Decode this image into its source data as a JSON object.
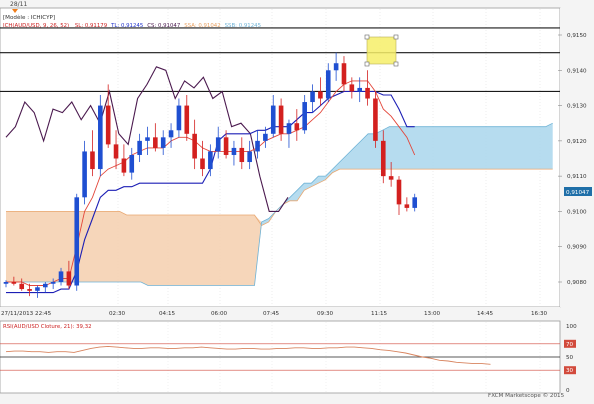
{
  "chart_window": {
    "top_date_label": "28/11",
    "legend_line1": "[Modèle : ICHICYP]",
    "legend_prefix": "ICH(AUD/USD, 9, 26, 52)",
    "legend_values": [
      {
        "text": "SL: 0,91179",
        "color": "#cc2222"
      },
      {
        "text": "TL: 0,91245",
        "color": "#2233cc"
      },
      {
        "text": "CS: 0,91047",
        "color": "#4b1a4f"
      },
      {
        "text": "SSA: 0,91042",
        "color": "#e8a060"
      },
      {
        "text": "SSB: 0,91245",
        "color": "#6fb3d6"
      }
    ],
    "price_axis": [
      "0,9150",
      "0,9140",
      "0,9130",
      "0,9120",
      "0,9110",
      "0,9100",
      "0,9090",
      "0,9080"
    ],
    "current_price": "0,91047",
    "time_axis": [
      "27/11/2013 22:45",
      "02:30",
      "04:15",
      "06:00",
      "07:45",
      "09:30",
      "11:15",
      "13:00",
      "14:45",
      "16:30"
    ],
    "footer": "FXCM Marketscope © 2015"
  },
  "rsi_window": {
    "legend": "RSI(AUD/USD Cloture, 21): 39,32",
    "axis": [
      "100",
      "70",
      "50",
      "30",
      "0"
    ]
  },
  "colors": {
    "bull": "#1f4fd1",
    "bear": "#d3201f",
    "tenkan": "#e3463a",
    "kijun": "#1c1fb5",
    "chikou": "#4b1a4f",
    "kumo_bull": "#a9d6ec",
    "kumo_bear": "#f5cfae"
  },
  "chart_data": {
    "type": "candlestick",
    "symbol": "AUD/USD",
    "ylim": [
      0.9073,
      0.9156
    ],
    "yticks": [
      0.915,
      0.914,
      0.913,
      0.912,
      0.911,
      0.91,
      0.909,
      0.908
    ],
    "horizontal_lines": [
      0.9152,
      0.9145,
      0.9134
    ],
    "candles": [
      {
        "o": 0.90795,
        "h": 0.90805,
        "l": 0.90785,
        "c": 0.908
      },
      {
        "o": 0.908,
        "h": 0.90815,
        "l": 0.9079,
        "c": 0.90795
      },
      {
        "o": 0.90795,
        "h": 0.9081,
        "l": 0.90775,
        "c": 0.9078
      },
      {
        "o": 0.9078,
        "h": 0.90795,
        "l": 0.9076,
        "c": 0.90775
      },
      {
        "o": 0.90775,
        "h": 0.9079,
        "l": 0.90755,
        "c": 0.90785
      },
      {
        "o": 0.90785,
        "h": 0.908,
        "l": 0.9077,
        "c": 0.90795
      },
      {
        "o": 0.90795,
        "h": 0.9081,
        "l": 0.9078,
        "c": 0.908
      },
      {
        "o": 0.908,
        "h": 0.9084,
        "l": 0.9079,
        "c": 0.9083
      },
      {
        "o": 0.9083,
        "h": 0.9086,
        "l": 0.9078,
        "c": 0.9079
      },
      {
        "o": 0.9079,
        "h": 0.9105,
        "l": 0.90775,
        "c": 0.9104
      },
      {
        "o": 0.9104,
        "h": 0.912,
        "l": 0.9102,
        "c": 0.9117
      },
      {
        "o": 0.9117,
        "h": 0.9123,
        "l": 0.911,
        "c": 0.9112
      },
      {
        "o": 0.9112,
        "h": 0.9133,
        "l": 0.911,
        "c": 0.913
      },
      {
        "o": 0.913,
        "h": 0.9136,
        "l": 0.9118,
        "c": 0.9119
      },
      {
        "o": 0.9119,
        "h": 0.9123,
        "l": 0.9112,
        "c": 0.9115
      },
      {
        "o": 0.9115,
        "h": 0.9119,
        "l": 0.911,
        "c": 0.9111
      },
      {
        "o": 0.9111,
        "h": 0.9118,
        "l": 0.9109,
        "c": 0.9116
      },
      {
        "o": 0.9116,
        "h": 0.9122,
        "l": 0.9114,
        "c": 0.912
      },
      {
        "o": 0.912,
        "h": 0.9124,
        "l": 0.9116,
        "c": 0.9121
      },
      {
        "o": 0.9121,
        "h": 0.9125,
        "l": 0.9117,
        "c": 0.9118
      },
      {
        "o": 0.9118,
        "h": 0.9123,
        "l": 0.9116,
        "c": 0.9121
      },
      {
        "o": 0.9121,
        "h": 0.9125,
        "l": 0.9118,
        "c": 0.9123
      },
      {
        "o": 0.9123,
        "h": 0.9132,
        "l": 0.9121,
        "c": 0.913
      },
      {
        "o": 0.913,
        "h": 0.9133,
        "l": 0.912,
        "c": 0.9122
      },
      {
        "o": 0.9122,
        "h": 0.9126,
        "l": 0.9112,
        "c": 0.9115
      },
      {
        "o": 0.9115,
        "h": 0.912,
        "l": 0.911,
        "c": 0.9112
      },
      {
        "o": 0.9112,
        "h": 0.9119,
        "l": 0.911,
        "c": 0.9117
      },
      {
        "o": 0.9117,
        "h": 0.9124,
        "l": 0.9115,
        "c": 0.9121
      },
      {
        "o": 0.9121,
        "h": 0.9123,
        "l": 0.9115,
        "c": 0.9116
      },
      {
        "o": 0.9116,
        "h": 0.912,
        "l": 0.9113,
        "c": 0.9118
      },
      {
        "o": 0.9118,
        "h": 0.9121,
        "l": 0.9112,
        "c": 0.9114
      },
      {
        "o": 0.9114,
        "h": 0.912,
        "l": 0.9112,
        "c": 0.9117
      },
      {
        "o": 0.9117,
        "h": 0.9123,
        "l": 0.9115,
        "c": 0.912
      },
      {
        "o": 0.912,
        "h": 0.9124,
        "l": 0.9118,
        "c": 0.9122
      },
      {
        "o": 0.9122,
        "h": 0.9133,
        "l": 0.9121,
        "c": 0.913
      },
      {
        "o": 0.913,
        "h": 0.9132,
        "l": 0.912,
        "c": 0.9122
      },
      {
        "o": 0.9122,
        "h": 0.9126,
        "l": 0.9118,
        "c": 0.9125
      },
      {
        "o": 0.9125,
        "h": 0.9129,
        "l": 0.912,
        "c": 0.9123
      },
      {
        "o": 0.9123,
        "h": 0.9133,
        "l": 0.9122,
        "c": 0.9131
      },
      {
        "o": 0.9131,
        "h": 0.9136,
        "l": 0.9128,
        "c": 0.9134
      },
      {
        "o": 0.9134,
        "h": 0.9138,
        "l": 0.913,
        "c": 0.9132
      },
      {
        "o": 0.9132,
        "h": 0.9142,
        "l": 0.9131,
        "c": 0.914
      },
      {
        "o": 0.914,
        "h": 0.9145,
        "l": 0.9137,
        "c": 0.9142
      },
      {
        "o": 0.9142,
        "h": 0.9144,
        "l": 0.9134,
        "c": 0.9136
      },
      {
        "o": 0.9136,
        "h": 0.9138,
        "l": 0.9132,
        "c": 0.9134
      },
      {
        "o": 0.9134,
        "h": 0.9138,
        "l": 0.9131,
        "c": 0.9135
      },
      {
        "o": 0.9135,
        "h": 0.914,
        "l": 0.913,
        "c": 0.9132
      },
      {
        "o": 0.9132,
        "h": 0.9134,
        "l": 0.9118,
        "c": 0.912
      },
      {
        "o": 0.912,
        "h": 0.9123,
        "l": 0.9108,
        "c": 0.911
      },
      {
        "o": 0.911,
        "h": 0.9114,
        "l": 0.9107,
        "c": 0.9109
      },
      {
        "o": 0.9109,
        "h": 0.911,
        "l": 0.9099,
        "c": 0.9102
      },
      {
        "o": 0.9102,
        "h": 0.9104,
        "l": 0.91,
        "c": 0.9101
      },
      {
        "o": 0.9101,
        "h": 0.9105,
        "l": 0.91,
        "c": 0.9104
      }
    ],
    "tenkan_sen": [
      0.908,
      0.908,
      0.908,
      0.9079,
      0.9079,
      0.9079,
      0.908,
      0.9081,
      0.9081,
      0.909,
      0.91,
      0.9104,
      0.911,
      0.9112,
      0.9113,
      0.9114,
      0.9116,
      0.9117,
      0.9118,
      0.9118,
      0.9118,
      0.912,
      0.9121,
      0.9121,
      0.912,
      0.9118,
      0.9117,
      0.9117,
      0.9117,
      0.9117,
      0.9117,
      0.9117,
      0.9118,
      0.912,
      0.9121,
      0.9122,
      0.9122,
      0.9123,
      0.9124,
      0.9126,
      0.9128,
      0.9131,
      0.9134,
      0.9136,
      0.9137,
      0.9137,
      0.9137,
      0.9134,
      0.9129,
      0.9127,
      0.9124,
      0.9121,
      0.9116
    ],
    "kijun_sen": [
      0.9077,
      0.9077,
      0.9077,
      0.9077,
      0.9077,
      0.9077,
      0.9077,
      0.9078,
      0.9078,
      0.9083,
      0.9092,
      0.9098,
      0.9104,
      0.9106,
      0.9106,
      0.9107,
      0.9107,
      0.9108,
      0.9108,
      0.9108,
      0.9108,
      0.9108,
      0.9108,
      0.9108,
      0.9108,
      0.9108,
      0.9112,
      0.912,
      0.9122,
      0.9122,
      0.9122,
      0.9122,
      0.9123,
      0.9123,
      0.9124,
      0.9124,
      0.9124,
      0.9126,
      0.9128,
      0.9128,
      0.913,
      0.9132,
      0.9133,
      0.9134,
      0.9134,
      0.9134,
      0.9134,
      0.9134,
      0.9133,
      0.9133,
      0.9129,
      0.9124,
      0.9124
    ],
    "chikou_span": [
      0.9121,
      0.9124,
      0.9131,
      0.9128,
      0.912,
      0.9129,
      0.9128,
      0.9131,
      0.9126,
      0.913,
      0.9125,
      0.9134,
      0.9122,
      0.9119,
      0.9132,
      0.9136,
      0.9141,
      0.914,
      0.9132,
      0.9137,
      0.9135,
      0.9138,
      0.9132,
      0.9134,
      0.9124,
      0.9125,
      0.9122,
      0.911,
      0.91,
      0.91,
      0.9104
    ],
    "kumo_senkou_a": [
      0.91,
      0.91,
      0.91,
      0.91,
      0.91,
      0.91,
      0.91,
      0.91,
      0.91,
      0.91,
      0.91,
      0.91,
      0.91,
      0.91,
      0.91,
      0.91,
      0.91,
      0.9099,
      0.9099,
      0.9099,
      0.9099,
      0.9099,
      0.9099,
      0.9099,
      0.9099,
      0.9099,
      0.9099,
      0.9099,
      0.9099,
      0.9099,
      0.9099,
      0.9099,
      0.9099,
      0.9099,
      0.9099,
      0.9099,
      0.9096,
      0.9097,
      0.91,
      0.9102,
      0.9103,
      0.9103,
      0.9106,
      0.9107,
      0.9108,
      0.9109,
      0.9111,
      0.9112,
      0.9112,
      0.9112,
      0.9112,
      0.9112,
      0.9112,
      0.9112,
      0.9112,
      0.9112,
      0.9112,
      0.9112,
      0.9112,
      0.9112,
      0.9112,
      0.9112,
      0.9112,
      0.9112,
      0.9112,
      0.9112,
      0.9112,
      0.9112,
      0.9112,
      0.9112,
      0.9112,
      0.9112,
      0.9112,
      0.9112,
      0.9112,
      0.9112,
      0.9112,
      0.9112
    ],
    "kumo_senkou_b": [
      0.908,
      0.908,
      0.908,
      0.908,
      0.908,
      0.908,
      0.908,
      0.908,
      0.908,
      0.908,
      0.908,
      0.908,
      0.908,
      0.908,
      0.908,
      0.908,
      0.908,
      0.908,
      0.908,
      0.908,
      0.9079,
      0.9079,
      0.9079,
      0.9079,
      0.9079,
      0.9079,
      0.9079,
      0.9079,
      0.9079,
      0.9079,
      0.9079,
      0.9079,
      0.9079,
      0.9079,
      0.9079,
      0.9079,
      0.9097,
      0.9098,
      0.91,
      0.9102,
      0.9104,
      0.9106,
      0.9108,
      0.9108,
      0.911,
      0.911,
      0.9112,
      0.9114,
      0.9116,
      0.9118,
      0.912,
      0.9122,
      0.9122,
      0.9123,
      0.9124,
      0.9124,
      0.9124,
      0.9124,
      0.9124,
      0.9124,
      0.9124,
      0.9124,
      0.9124,
      0.9124,
      0.9124,
      0.9124,
      0.9124,
      0.9124,
      0.9124,
      0.9124,
      0.9124,
      0.9124,
      0.9124,
      0.9124,
      0.9124,
      0.9124,
      0.9124,
      0.9125
    ],
    "rsi": {
      "ylim": [
        0,
        100
      ],
      "levels": [
        70,
        50,
        30
      ],
      "values": [
        58,
        59,
        59,
        58,
        58,
        57,
        58,
        58,
        57,
        60,
        63,
        65,
        66,
        65,
        64,
        63,
        63,
        64,
        64,
        63,
        63,
        64,
        64,
        65,
        64,
        63,
        62,
        62,
        63,
        63,
        62,
        62,
        63,
        63,
        64,
        64,
        63,
        63,
        64,
        64,
        65,
        65,
        64,
        63,
        61,
        60,
        58,
        56,
        53,
        50,
        48,
        45,
        44,
        42,
        41,
        40,
        40,
        39
      ]
    }
  }
}
